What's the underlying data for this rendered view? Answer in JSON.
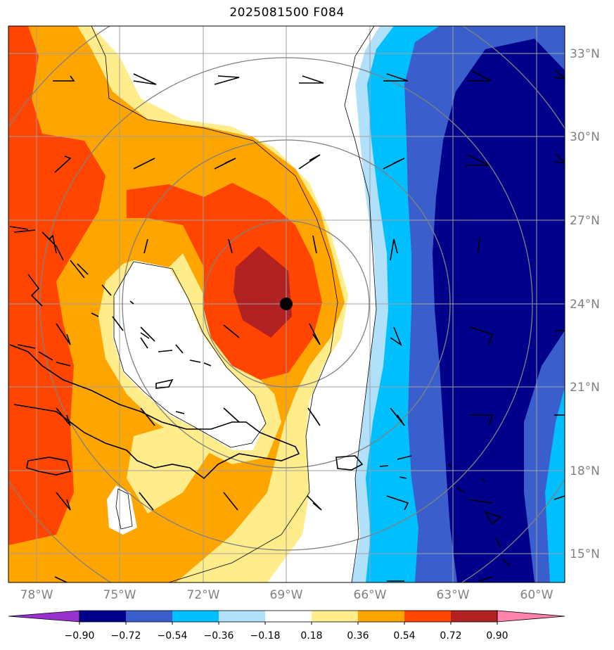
{
  "title": "2025081500 F084",
  "lat_labels": [
    "33°N",
    "30°N",
    "27°N",
    "24°N",
    "21°N",
    "18°N",
    "15°N"
  ],
  "lon_labels": [
    "78°W",
    "75°W",
    "72°W",
    "69°W",
    "66°W",
    "63°W",
    "60°W"
  ],
  "storm_center": {
    "lat": 24.0,
    "lon": -68.8
  },
  "map_extent": {
    "lon": [
      -79,
      -59
    ],
    "lat": [
      14,
      34
    ]
  },
  "colorbar": {
    "ticks": [
      "−0.90",
      "−0.72",
      "−0.54",
      "−0.36",
      "−0.18",
      "0.18",
      "0.36",
      "0.54",
      "0.72",
      "0.90"
    ],
    "colors": [
      "#9932cc",
      "#00008b",
      "#3a5fcd",
      "#00bfff",
      "#b0e0fa",
      "#ffffff",
      "#ffec8b",
      "#ffa500",
      "#ff4500",
      "#b22222",
      "#ff82ab"
    ]
  }
}
